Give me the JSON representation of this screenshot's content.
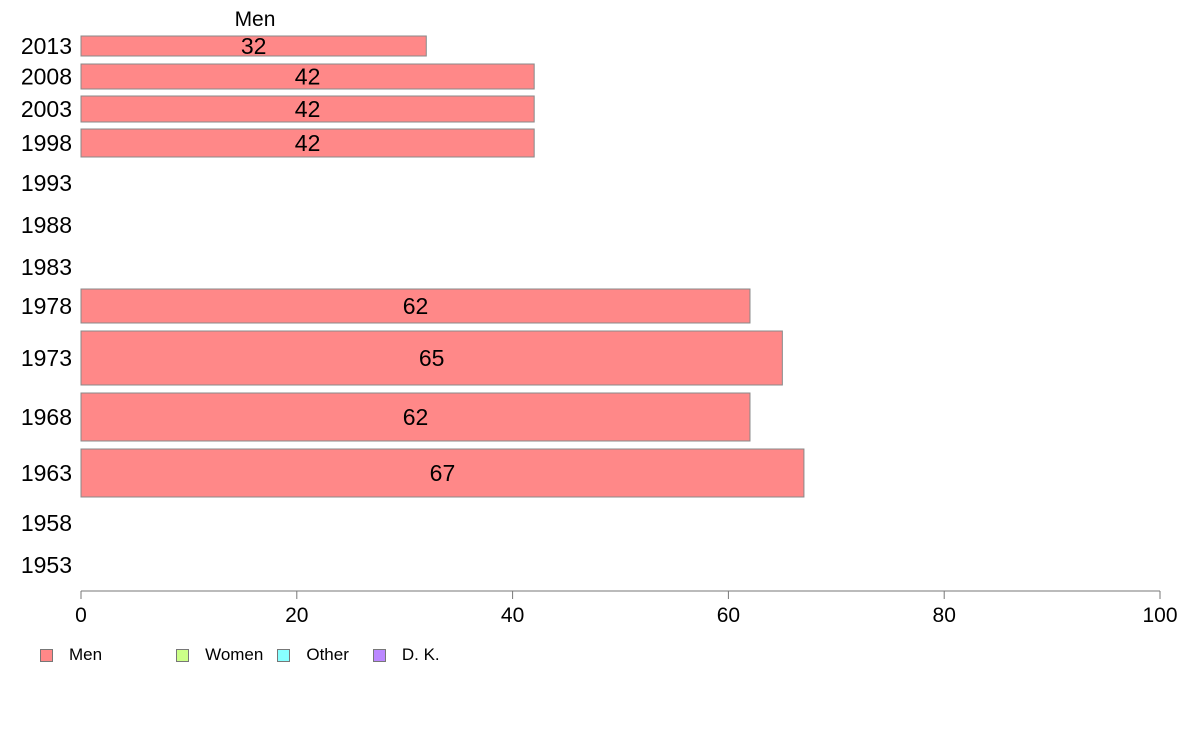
{
  "chart_data": {
    "type": "bar",
    "orientation": "horizontal",
    "series_label": "Men",
    "categories": [
      "2013",
      "2008",
      "2003",
      "1998",
      "1993",
      "1988",
      "1983",
      "1978",
      "1973",
      "1968",
      "1963",
      "1958",
      "1953"
    ],
    "series": [
      {
        "name": "Men",
        "color": "#ff8888",
        "values": [
          32,
          42,
          42,
          42,
          null,
          null,
          null,
          62,
          65,
          62,
          67,
          null,
          null
        ]
      }
    ],
    "xlim": [
      0,
      100
    ],
    "xticks": [
      "0",
      "20",
      "40",
      "60",
      "80",
      "100"
    ],
    "bar_labels": [
      "32",
      "42",
      "42",
      "42",
      "",
      "",
      "",
      "62",
      "65",
      "62",
      "67",
      "",
      ""
    ],
    "grid": false,
    "legend_position": "bottom-left"
  },
  "legend": [
    {
      "label": "Men",
      "color": "#ff8888",
      "swatch_name": "legend-swatch-men"
    },
    {
      "label": "Women",
      "color": "#ccff88",
      "swatch_name": "legend-swatch-women"
    },
    {
      "label": "Other",
      "color": "#88ffff",
      "swatch_name": "legend-swatch-other"
    },
    {
      "label": "D. K.",
      "color": "#bb88ff",
      "swatch_name": "legend-swatch-dk"
    }
  ]
}
